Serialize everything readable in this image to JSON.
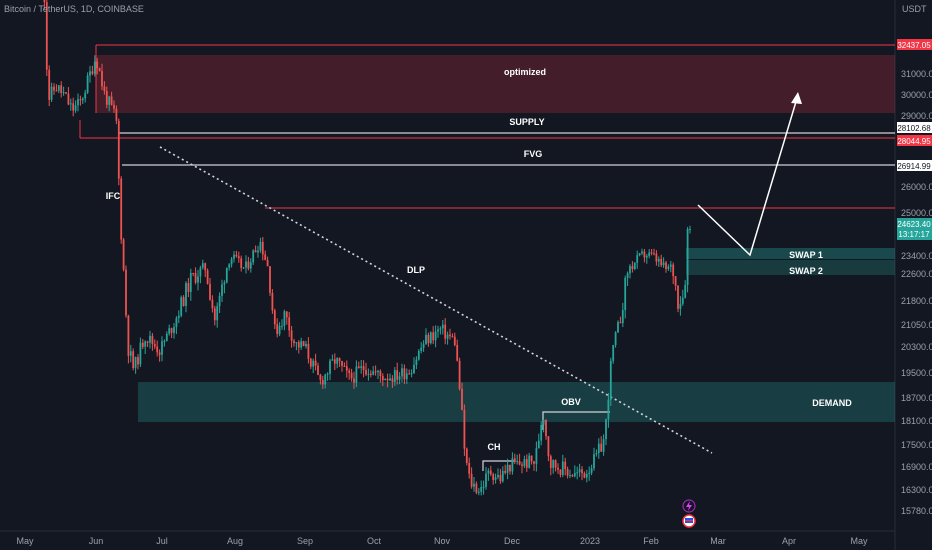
{
  "header": {
    "symbol": "Bitcoin / TetherUS, 1D, COINBASE",
    "currency": "USDT"
  },
  "chart_data": {
    "type": "candlestick",
    "title": "Bitcoin / TetherUS, 1D, COINBASE",
    "ylabel": "USDT",
    "x_ticks": [
      "May",
      "Jun",
      "Jul",
      "Aug",
      "Sep",
      "Oct",
      "Nov",
      "Dec",
      "2023",
      "Feb",
      "Mar",
      "Apr",
      "May"
    ],
    "y_ticks": [
      31000,
      30000,
      29000,
      26000,
      25000,
      23400,
      22600,
      21800,
      21050,
      20300,
      19500,
      18700,
      18100,
      17500,
      16900,
      16300,
      15780
    ],
    "price_levels": [
      {
        "value": 32437.05,
        "label": "32437.05",
        "color": "#f23645",
        "label_bg": "#f23645",
        "label_fg": "#ffffff"
      },
      {
        "value": 28102.68,
        "label": "28102.68",
        "color": "#ffffff",
        "label_bg": "#ffffff",
        "label_fg": "#131722"
      },
      {
        "value": 28044.95,
        "label": "28044.95",
        "color": "#f23645",
        "label_bg": "#f23645",
        "label_fg": "#ffffff"
      },
      {
        "value": 26914.99,
        "label": "26914.99",
        "color": "#ffffff",
        "label_bg": "#ffffff",
        "label_fg": "#131722"
      }
    ],
    "last_price": {
      "value": 24623.4,
      "label": "24623.40",
      "countdown": "13:17:17",
      "color": "#26a69a"
    },
    "zones": [
      {
        "name": "optimized",
        "low": 29400,
        "high": 31800,
        "color": "#f23645"
      },
      {
        "name": "DEMAND",
        "low": 18150,
        "high": 19300,
        "color": "#26a69a"
      },
      {
        "name": "SWAP 1",
        "low": 23250,
        "high": 23700,
        "color": "#26a69a"
      },
      {
        "name": "SWAP 2",
        "low": 22650,
        "high": 23150,
        "color": "#26a69a"
      }
    ],
    "annotations": [
      "optimized",
      "SUPPLY",
      "FVG",
      "IFC",
      "DLP",
      "OBV",
      "CH",
      "DEMAND",
      "SWAP 1",
      "SWAP 2"
    ],
    "grid": false,
    "candle_colors": {
      "up": "#26a69a",
      "down": "#ef5350"
    }
  }
}
